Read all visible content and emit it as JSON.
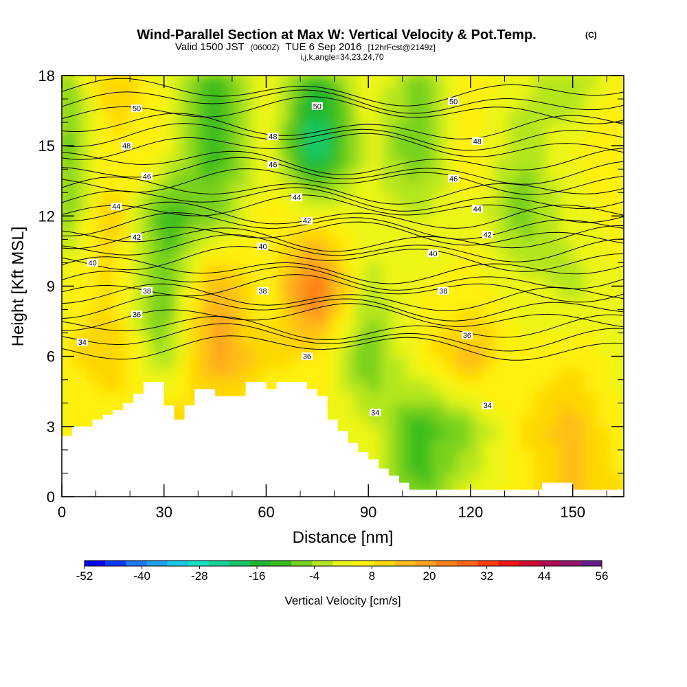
{
  "header": {
    "title": "Wind-Parallel Section at Max W: Vertical Velocity & Pot.Temp.",
    "copyright": "(C)",
    "valid_a": "Valid 1500 JST",
    "valid_b": "(0600Z)",
    "valid_c": "TUE 6 Sep 2016",
    "valid_d": "[12hrFcst@2149z]",
    "indices": "i,j,k,angle=34,23,24,70"
  },
  "chart_data": {
    "type": "heatmap",
    "title": "Wind-Parallel Section at Max W: Vertical Velocity & Pot.Temp.",
    "xlabel": "Distance [nm]",
    "ylabel": "Height [Kft MSL]",
    "xlim": [
      0,
      165
    ],
    "ylim": [
      0,
      18
    ],
    "xticks": [
      "0",
      "30",
      "60",
      "90",
      "120",
      "150"
    ],
    "yticks": [
      "0",
      "3",
      "6",
      "9",
      "12",
      "15",
      "18"
    ],
    "colorbar": {
      "label": "Vertical Velocity [cm/s]",
      "ticks": [
        "-52",
        "-40",
        "-28",
        "-16",
        "-4",
        "8",
        "20",
        "32",
        "44",
        "56"
      ],
      "colors": [
        "#0000ee",
        "#0a3cf5",
        "#1e78f5",
        "#1ea0f0",
        "#18c8e6",
        "#14e1c8",
        "#14d296",
        "#16c866",
        "#1eb932",
        "#3cbe1e",
        "#78d21e",
        "#b4e61e",
        "#ebf514",
        "#fff00a",
        "#ffd700",
        "#ffbe14",
        "#ffa01e",
        "#ff8219",
        "#ff6414",
        "#ff3c0a",
        "#f01414",
        "#d20a32",
        "#b40a50",
        "#96146e",
        "#641e8c"
      ]
    },
    "vertical_velocity_cm_s": {
      "rows_height_kft": [
        0,
        3,
        6,
        9,
        12,
        15,
        18
      ],
      "cols_distance_nm": [
        0,
        15,
        30,
        45,
        60,
        75,
        90,
        105,
        120,
        135,
        150,
        165
      ],
      "values": [
        [
          null,
          null,
          null,
          null,
          null,
          null,
          null,
          -10,
          2,
          6,
          14,
          10
        ],
        [
          4,
          6,
          14,
          null,
          null,
          null,
          2,
          -12,
          -6,
          8,
          16,
          4
        ],
        [
          8,
          12,
          -6,
          20,
          10,
          8,
          -10,
          6,
          16,
          4,
          8,
          2
        ],
        [
          4,
          10,
          -10,
          18,
          4,
          30,
          -2,
          4,
          6,
          2,
          -2,
          4
        ],
        [
          -8,
          12,
          -12,
          -6,
          6,
          4,
          2,
          0,
          4,
          -8,
          2,
          6
        ],
        [
          -12,
          8,
          6,
          -14,
          4,
          -24,
          2,
          -10,
          8,
          -4,
          4,
          8
        ],
        [
          -8,
          14,
          2,
          -12,
          6,
          -14,
          4,
          -6,
          6,
          2,
          -6,
          8
        ]
      ]
    },
    "potential_temperature_contours": {
      "levels": [
        34,
        36,
        38,
        40,
        42,
        44,
        46,
        48,
        50
      ],
      "labels": [
        {
          "value": "34",
          "x_nm": 6,
          "y_kft": 6.6
        },
        {
          "value": "36",
          "x_nm": 22,
          "y_kft": 7.8
        },
        {
          "value": "38",
          "x_nm": 25,
          "y_kft": 8.8
        },
        {
          "value": "40",
          "x_nm": 9,
          "y_kft": 10.0
        },
        {
          "value": "42",
          "x_nm": 22,
          "y_kft": 11.1
        },
        {
          "value": "44",
          "x_nm": 16,
          "y_kft": 12.4
        },
        {
          "value": "46",
          "x_nm": 25,
          "y_kft": 13.7
        },
        {
          "value": "48",
          "x_nm": 19,
          "y_kft": 15.0
        },
        {
          "value": "50",
          "x_nm": 22,
          "y_kft": 16.6
        },
        {
          "value": "50",
          "x_nm": 75,
          "y_kft": 16.7
        },
        {
          "value": "50",
          "x_nm": 115,
          "y_kft": 16.9
        },
        {
          "value": "48",
          "x_nm": 62,
          "y_kft": 15.4
        },
        {
          "value": "46",
          "x_nm": 62,
          "y_kft": 14.2
        },
        {
          "value": "44",
          "x_nm": 69,
          "y_kft": 12.8
        },
        {
          "value": "42",
          "x_nm": 72,
          "y_kft": 11.8
        },
        {
          "value": "40",
          "x_nm": 59,
          "y_kft": 10.7
        },
        {
          "value": "38",
          "x_nm": 59,
          "y_kft": 8.8
        },
        {
          "value": "36",
          "x_nm": 72,
          "y_kft": 6.0
        },
        {
          "value": "34",
          "x_nm": 92,
          "y_kft": 3.6
        },
        {
          "value": "48",
          "x_nm": 122,
          "y_kft": 15.2
        },
        {
          "value": "46",
          "x_nm": 115,
          "y_kft": 13.6
        },
        {
          "value": "44",
          "x_nm": 122,
          "y_kft": 12.3
        },
        {
          "value": "42",
          "x_nm": 125,
          "y_kft": 11.2
        },
        {
          "value": "40",
          "x_nm": 109,
          "y_kft": 10.4
        },
        {
          "value": "38",
          "x_nm": 112,
          "y_kft": 8.8
        },
        {
          "value": "36",
          "x_nm": 119,
          "y_kft": 6.9
        },
        {
          "value": "34",
          "x_nm": 125,
          "y_kft": 3.9
        }
      ]
    },
    "terrain_top_kft": {
      "x_nm": [
        0,
        3,
        6,
        9,
        12,
        15,
        18,
        21,
        24,
        27,
        30,
        33,
        36,
        39,
        42,
        45,
        48,
        51,
        54,
        57,
        60,
        63,
        66,
        69,
        72,
        75,
        78,
        81,
        84,
        87,
        90,
        93,
        96,
        99,
        102,
        105,
        108,
        111,
        114,
        117,
        120,
        123,
        126,
        129,
        132,
        135,
        138,
        141,
        144,
        147,
        150,
        153,
        156,
        159,
        162,
        165
      ],
      "y_kft": [
        2.6,
        3.0,
        3.0,
        3.3,
        3.5,
        3.7,
        4.0,
        4.4,
        4.9,
        4.9,
        3.9,
        3.3,
        3.9,
        4.6,
        4.6,
        4.3,
        4.3,
        4.3,
        4.9,
        4.9,
        4.6,
        4.9,
        4.9,
        4.9,
        4.6,
        4.3,
        3.3,
        2.8,
        2.3,
        1.9,
        1.6,
        1.2,
        0.9,
        0.6,
        0.3,
        0.3,
        0.3,
        0.3,
        0.3,
        0.3,
        0.3,
        0.3,
        0.3,
        0.3,
        0.3,
        0.3,
        0.3,
        0.6,
        0.6,
        0.6,
        0.3,
        0.3,
        0.3,
        0.3,
        0.3,
        0.3
      ]
    }
  }
}
